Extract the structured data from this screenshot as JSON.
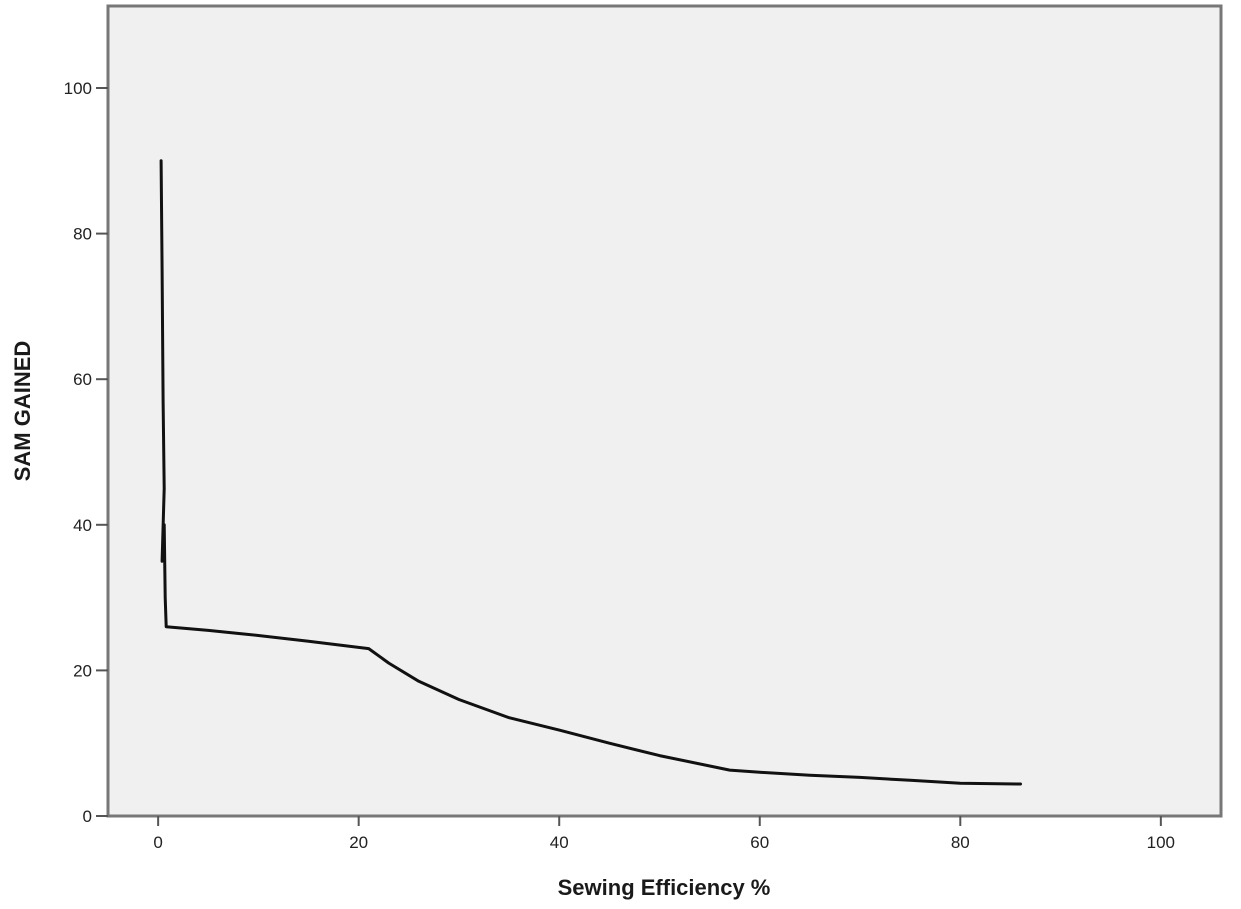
{
  "chart_data": {
    "type": "line",
    "title": "",
    "xlabel": "Sewing Efficiency %",
    "ylabel": "SAM GAINED",
    "xlim": [
      -5,
      106
    ],
    "ylim": [
      0,
      100
    ],
    "x_ticks": [
      0,
      20,
      40,
      60,
      80,
      100
    ],
    "y_ticks": [
      0,
      20,
      40,
      60,
      80,
      100
    ],
    "grid": false,
    "legend": "none",
    "colors": {
      "plot_bg": "#f0f0f0",
      "frame": "#777777",
      "line": "#111111"
    },
    "series": [
      {
        "x": [
          0.3,
          0.4,
          0.5,
          0.6,
          0.4,
          0.6,
          0.7,
          0.8,
          5,
          10,
          15,
          21,
          23,
          26,
          30,
          35,
          40,
          45,
          50,
          57,
          60,
          65,
          70,
          75,
          80,
          86
        ],
        "y": [
          90,
          75,
          57,
          45,
          35,
          40,
          30,
          26,
          25.5,
          24.8,
          24,
          23,
          21,
          18.5,
          16,
          13.5,
          11.8,
          10,
          8.3,
          6.3,
          6,
          5.6,
          5.3,
          4.9,
          4.5,
          4.4
        ]
      }
    ]
  }
}
